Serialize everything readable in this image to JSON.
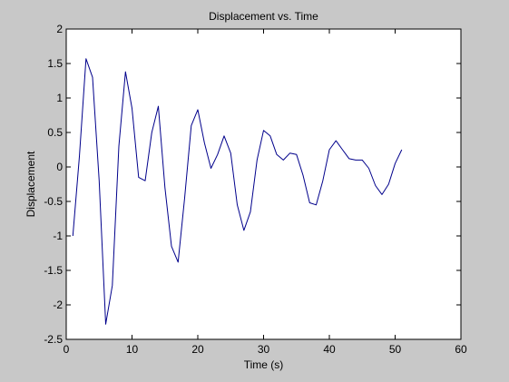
{
  "figure": {
    "background": "#c8c8c8"
  },
  "chart_data": {
    "type": "line",
    "title": "Displacement vs. Time",
    "xlabel": "Time (s)",
    "ylabel": "Displacement",
    "xlim": [
      0,
      60
    ],
    "ylim": [
      -2.5,
      2
    ],
    "xticks": [
      0,
      10,
      20,
      30,
      40,
      50,
      60
    ],
    "yticks": [
      -2.5,
      -2,
      -1.5,
      -1,
      -0.5,
      0,
      0.5,
      1,
      1.5,
      2
    ],
    "xtick_labels": [
      "0",
      "10",
      "20",
      "30",
      "40",
      "50",
      "60"
    ],
    "ytick_labels": [
      "-2.5",
      "-2",
      "-1.5",
      "-1",
      "-0.5",
      "0",
      "0.5",
      "1",
      "1.5",
      "2"
    ],
    "grid": false,
    "axes_background": "#ffffff",
    "series": [
      {
        "color": "#00008b",
        "x": [
          1,
          2,
          3,
          4,
          5,
          6,
          7,
          8,
          9,
          10,
          11,
          12,
          13,
          14,
          15,
          16,
          17,
          18,
          19,
          20,
          21,
          22,
          23,
          24,
          25,
          26,
          27,
          28,
          29,
          30,
          31,
          32,
          33,
          34,
          35,
          36,
          37,
          38,
          39,
          40,
          41,
          42,
          43,
          44,
          45,
          46,
          47,
          48,
          49,
          50,
          51
        ],
        "y": [
          -1.0,
          0.15,
          1.57,
          1.3,
          -0.2,
          -2.28,
          -1.72,
          0.3,
          1.38,
          0.85,
          -0.15,
          -0.2,
          0.5,
          0.88,
          -0.3,
          -1.15,
          -1.38,
          -0.45,
          0.6,
          0.83,
          0.35,
          -0.02,
          0.18,
          0.45,
          0.2,
          -0.55,
          -0.92,
          -0.65,
          0.1,
          0.53,
          0.45,
          0.18,
          0.1,
          0.2,
          0.18,
          -0.12,
          -0.52,
          -0.55,
          -0.2,
          0.25,
          0.38,
          0.25,
          0.12,
          0.1,
          0.1,
          -0.02,
          -0.27,
          -0.4,
          -0.25,
          0.05,
          0.25
        ]
      }
    ]
  }
}
